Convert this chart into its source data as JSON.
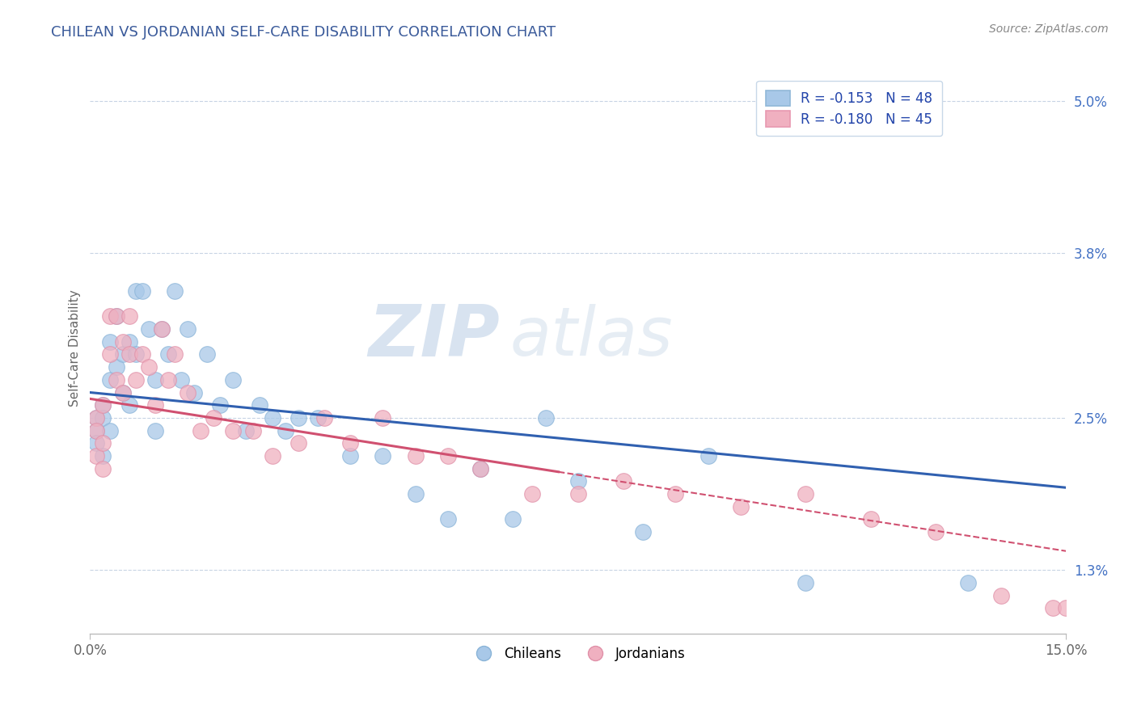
{
  "title": "CHILEAN VS JORDANIAN SELF-CARE DISABILITY CORRELATION CHART",
  "source_text": "Source: ZipAtlas.com",
  "ylabel": "Self-Care Disability",
  "xlim": [
    0.0,
    0.15
  ],
  "ylim": [
    0.008,
    0.053
  ],
  "xticks": [
    0.0,
    0.15
  ],
  "xticklabels": [
    "0.0%",
    "15.0%"
  ],
  "yticks": [
    0.013,
    0.025,
    0.038,
    0.05
  ],
  "yticklabels": [
    "1.3%",
    "2.5%",
    "3.8%",
    "5.0%"
  ],
  "legend_r1": "R = -0.153",
  "legend_n1": "N = 48",
  "legend_r2": "R = -0.180",
  "legend_n2": "N = 45",
  "blue_color": "#a8c8e8",
  "pink_color": "#f0b0c0",
  "blue_line_color": "#3060b0",
  "pink_line_color": "#d05070",
  "watermark": "ZIPatlas",
  "watermark_color": "#d0dff0",
  "background_color": "#ffffff",
  "grid_color": "#c8d4e4",
  "title_color": "#3a5a9a",
  "axis_color": "#666666",
  "source_color": "#888888",
  "tick_label_color": "#4472c4",
  "chilean_x": [
    0.001,
    0.001,
    0.001,
    0.002,
    0.002,
    0.002,
    0.003,
    0.003,
    0.003,
    0.004,
    0.004,
    0.005,
    0.005,
    0.006,
    0.006,
    0.007,
    0.007,
    0.008,
    0.009,
    0.01,
    0.01,
    0.011,
    0.012,
    0.013,
    0.014,
    0.015,
    0.016,
    0.018,
    0.02,
    0.022,
    0.024,
    0.026,
    0.028,
    0.03,
    0.032,
    0.035,
    0.04,
    0.045,
    0.05,
    0.055,
    0.06,
    0.065,
    0.07,
    0.075,
    0.085,
    0.095,
    0.11,
    0.135
  ],
  "chilean_y": [
    0.025,
    0.024,
    0.023,
    0.026,
    0.025,
    0.022,
    0.031,
    0.028,
    0.024,
    0.033,
    0.029,
    0.03,
    0.027,
    0.031,
    0.026,
    0.035,
    0.03,
    0.035,
    0.032,
    0.028,
    0.024,
    0.032,
    0.03,
    0.035,
    0.028,
    0.032,
    0.027,
    0.03,
    0.026,
    0.028,
    0.024,
    0.026,
    0.025,
    0.024,
    0.025,
    0.025,
    0.022,
    0.022,
    0.019,
    0.017,
    0.021,
    0.017,
    0.025,
    0.02,
    0.016,
    0.022,
    0.012,
    0.012
  ],
  "jordanian_x": [
    0.001,
    0.001,
    0.001,
    0.002,
    0.002,
    0.002,
    0.003,
    0.003,
    0.004,
    0.004,
    0.005,
    0.005,
    0.006,
    0.006,
    0.007,
    0.008,
    0.009,
    0.01,
    0.011,
    0.012,
    0.013,
    0.015,
    0.017,
    0.019,
    0.022,
    0.025,
    0.028,
    0.032,
    0.036,
    0.04,
    0.045,
    0.05,
    0.055,
    0.06,
    0.068,
    0.075,
    0.082,
    0.09,
    0.1,
    0.11,
    0.12,
    0.13,
    0.14,
    0.148,
    0.15
  ],
  "jordanian_y": [
    0.025,
    0.024,
    0.022,
    0.026,
    0.023,
    0.021,
    0.033,
    0.03,
    0.033,
    0.028,
    0.031,
    0.027,
    0.033,
    0.03,
    0.028,
    0.03,
    0.029,
    0.026,
    0.032,
    0.028,
    0.03,
    0.027,
    0.024,
    0.025,
    0.024,
    0.024,
    0.022,
    0.023,
    0.025,
    0.023,
    0.025,
    0.022,
    0.022,
    0.021,
    0.019,
    0.019,
    0.02,
    0.019,
    0.018,
    0.019,
    0.017,
    0.016,
    0.011,
    0.01,
    0.01
  ],
  "blue_line_x0": 0.0,
  "blue_line_x1": 0.15,
  "blue_line_y0": 0.027,
  "blue_line_y1": 0.0195,
  "pink_line_x0": 0.0,
  "pink_line_x1": 0.1,
  "pink_line_y0": 0.0265,
  "pink_line_y1": 0.0185
}
